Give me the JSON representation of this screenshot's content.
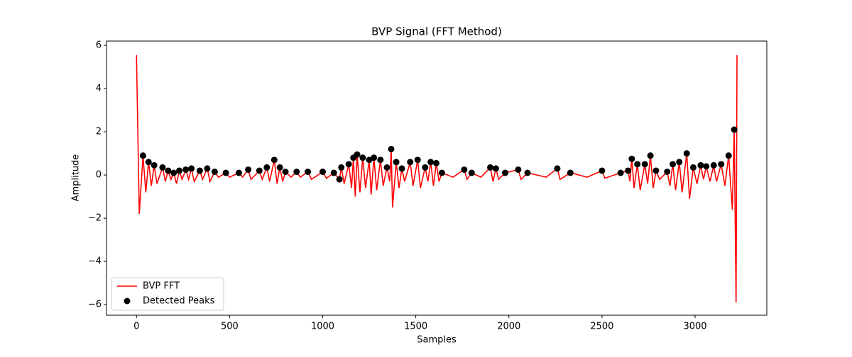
{
  "chart_data": {
    "type": "line",
    "title": "BVP Signal (FFT Method)",
    "x_label": "Samples",
    "y_label": "Amplitude",
    "xlim": [
      -161,
      3385
    ],
    "ylim": [
      -6.49,
      6.2
    ],
    "xticks": [
      0,
      500,
      1000,
      1500,
      2000,
      2500,
      3000
    ],
    "yticks": [
      {
        "value": -6,
        "label": "−6"
      },
      {
        "value": -4,
        "label": "−4"
      },
      {
        "value": -2,
        "label": "−2"
      },
      0,
      2,
      4,
      6
    ],
    "legend": "lower left",
    "series": [
      {
        "name": "BVP FFT",
        "type": "line",
        "color": "#ff0000",
        "x": [
          0,
          15,
          35,
          50,
          65,
          80,
          95,
          110,
          140,
          155,
          170,
          185,
          200,
          215,
          230,
          245,
          265,
          280,
          295,
          310,
          340,
          355,
          380,
          395,
          420,
          440,
          480,
          500,
          550,
          570,
          600,
          615,
          660,
          675,
          700,
          715,
          740,
          755,
          770,
          785,
          800,
          830,
          860,
          880,
          920,
          940,
          1000,
          1020,
          1060,
          1090,
          1100,
          1115,
          1140,
          1155,
          1165,
          1175,
          1185,
          1200,
          1215,
          1230,
          1250,
          1260,
          1275,
          1290,
          1310,
          1325,
          1345,
          1360,
          1368,
          1375,
          1395,
          1410,
          1425,
          1440,
          1470,
          1485,
          1510,
          1525,
          1550,
          1565,
          1580,
          1595,
          1610,
          1625,
          1640,
          1700,
          1760,
          1775,
          1800,
          1850,
          1900,
          1915,
          1930,
          1945,
          1980,
          2050,
          2065,
          2100,
          2200,
          2260,
          2275,
          2330,
          2420,
          2500,
          2515,
          2600,
          2640,
          2650,
          2660,
          2672,
          2690,
          2705,
          2730,
          2745,
          2760,
          2775,
          2790,
          2810,
          2850,
          2865,
          2880,
          2895,
          2915,
          2930,
          2955,
          2970,
          2990,
          3010,
          3030,
          3045,
          3060,
          3080,
          3100,
          3115,
          3140,
          3160,
          3180,
          3200,
          3210,
          3220,
          3225
        ],
        "values": [
          5.55,
          -1.8,
          0.9,
          -0.8,
          0.6,
          -0.5,
          0.45,
          -0.4,
          0.35,
          -0.3,
          0.2,
          -0.2,
          0.1,
          -0.4,
          0.2,
          -0.2,
          0.25,
          -0.2,
          0.3,
          -0.3,
          0.2,
          -0.2,
          0.3,
          -0.3,
          0.15,
          -0.1,
          0.1,
          -0.1,
          0.1,
          -0.1,
          0.25,
          -0.2,
          0.2,
          -0.2,
          0.35,
          -0.3,
          0.7,
          -0.4,
          0.35,
          -0.3,
          0.15,
          -0.1,
          0.15,
          -0.1,
          0.15,
          -0.2,
          0.15,
          -0.15,
          0.1,
          -0.2,
          0.35,
          -0.4,
          0.5,
          -0.6,
          0.8,
          -1.0,
          0.95,
          -0.8,
          0.8,
          -0.6,
          0.7,
          -0.9,
          0.8,
          -0.7,
          0.7,
          -0.5,
          0.35,
          -0.3,
          1.2,
          -1.5,
          0.6,
          -0.6,
          0.3,
          -0.3,
          0.6,
          -0.5,
          0.7,
          -0.6,
          0.35,
          -0.3,
          0.6,
          -0.5,
          0.55,
          -0.3,
          0.1,
          -0.1,
          0.25,
          -0.2,
          0.1,
          -0.1,
          0.35,
          -0.3,
          0.3,
          -0.2,
          0.1,
          0.25,
          -0.2,
          0.1,
          -0.1,
          0.3,
          -0.2,
          0.1,
          -0.1,
          0.2,
          -0.15,
          0.1,
          0.2,
          -0.3,
          0.75,
          -0.6,
          0.5,
          -0.7,
          0.5,
          -0.4,
          0.9,
          -0.6,
          0.2,
          -0.2,
          0.15,
          -0.5,
          0.5,
          -0.7,
          0.6,
          -0.8,
          1.0,
          -1.1,
          0.35,
          -0.4,
          0.45,
          -0.2,
          0.4,
          -0.3,
          0.45,
          -0.3,
          0.5,
          -0.5,
          0.9,
          -1.6,
          2.1,
          -5.9,
          5.55
        ]
      },
      {
        "name": "Detected Peaks",
        "type": "scatter",
        "color": "#000000",
        "x": [
          35,
          65,
          95,
          140,
          170,
          200,
          230,
          265,
          295,
          340,
          380,
          420,
          480,
          550,
          600,
          660,
          700,
          740,
          770,
          800,
          860,
          920,
          1000,
          1060,
          1090,
          1100,
          1140,
          1165,
          1185,
          1215,
          1250,
          1275,
          1310,
          1345,
          1368,
          1395,
          1425,
          1470,
          1510,
          1550,
          1580,
          1610,
          1640,
          1760,
          1800,
          1900,
          1930,
          1980,
          2050,
          2100,
          2260,
          2330,
          2500,
          2600,
          2640,
          2660,
          2690,
          2730,
          2760,
          2790,
          2850,
          2880,
          2915,
          2955,
          2990,
          3030,
          3060,
          3100,
          3140,
          3180,
          3210
        ],
        "values": [
          0.9,
          0.6,
          0.45,
          0.35,
          0.2,
          0.1,
          0.2,
          0.25,
          0.3,
          0.2,
          0.3,
          0.15,
          0.1,
          0.1,
          0.25,
          0.2,
          0.35,
          0.7,
          0.35,
          0.15,
          0.15,
          0.15,
          0.15,
          0.1,
          -0.2,
          0.35,
          0.5,
          0.8,
          0.95,
          0.8,
          0.7,
          0.8,
          0.7,
          0.35,
          1.2,
          0.6,
          0.3,
          0.6,
          0.7,
          0.35,
          0.6,
          0.55,
          0.1,
          0.25,
          0.1,
          0.35,
          0.3,
          0.1,
          0.25,
          0.1,
          0.3,
          0.1,
          0.2,
          0.1,
          0.2,
          0.75,
          0.5,
          0.5,
          0.9,
          0.2,
          0.15,
          0.5,
          0.6,
          1.0,
          0.35,
          0.45,
          0.4,
          0.45,
          0.5,
          0.9,
          2.1
        ]
      }
    ]
  }
}
